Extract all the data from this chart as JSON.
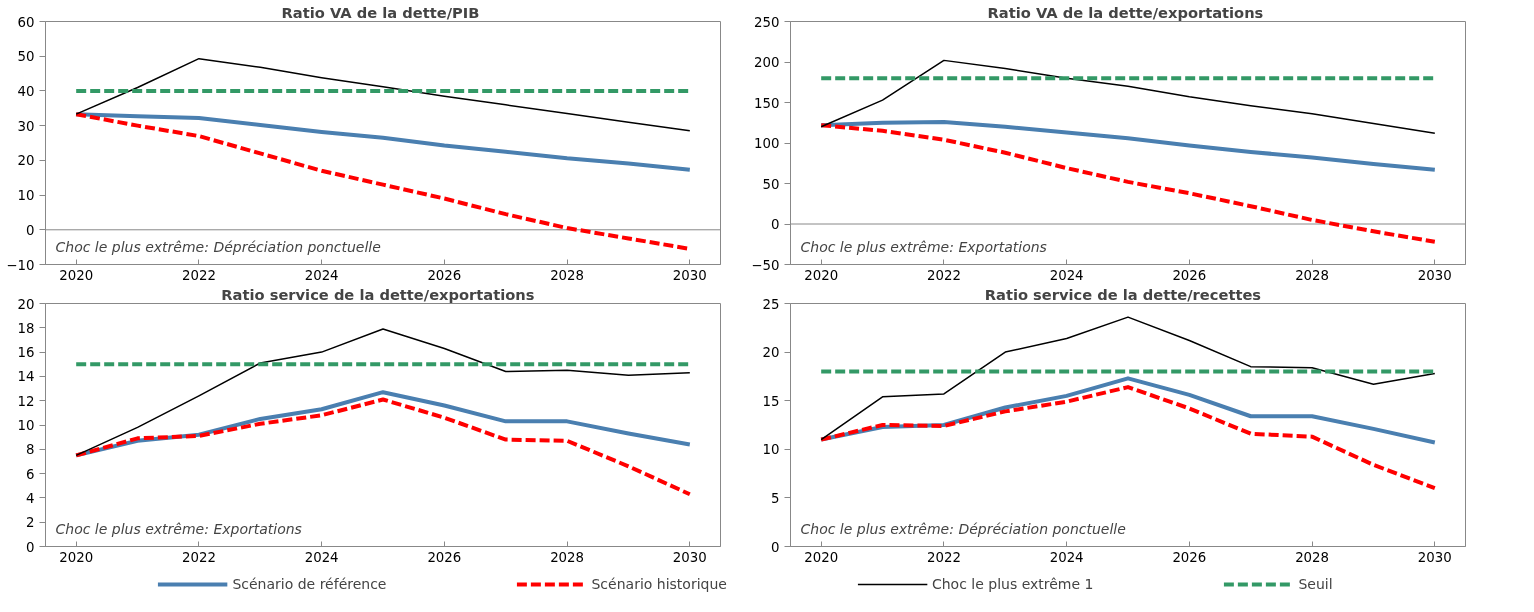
{
  "chart_data": [
    {
      "type": "line",
      "title": "Ratio  VA de la dette/PIB",
      "x": [
        2020,
        2021,
        2022,
        2023,
        2024,
        2025,
        2026,
        2027,
        2028,
        2029,
        2030
      ],
      "xlim": [
        2019.5,
        2030.5
      ],
      "xticks": [
        2020,
        2022,
        2024,
        2026,
        2028,
        2030
      ],
      "ylim": [
        -10,
        60
      ],
      "yticks": [
        -10,
        0,
        10,
        20,
        30,
        40,
        50,
        60
      ],
      "grid": false,
      "ref_lines": [
        {
          "axis": "y",
          "value": 0,
          "color": "#888888"
        }
      ],
      "legend": "bottom",
      "annotations": [
        "Choc  le plus  extrême:  Dépréciation  ponctuelle"
      ],
      "series": [
        {
          "name": "Scénario de référence",
          "color": "#4a7fb0",
          "line_style": "solid",
          "values": [
            33.3,
            32.7,
            32.2,
            30.2,
            28.2,
            26.5,
            24.3,
            22.5,
            20.6,
            19.1,
            17.3
          ]
        },
        {
          "name": "Scénario historique",
          "color": "#ff0000",
          "line_style": "dashed",
          "values": [
            33.3,
            30,
            27,
            22,
            17,
            13,
            9,
            4.5,
            0.5,
            -2.5,
            -5.5
          ]
        },
        {
          "name": "Choc le plus extrême 1",
          "color": "#000000",
          "line_style": "solid",
          "values": [
            33.3,
            41,
            49.3,
            46.8,
            43.8,
            41.2,
            38.5,
            36,
            33.5,
            31,
            28.5
          ]
        },
        {
          "name": "Seuil",
          "color": "#339966",
          "line_style": "dashed",
          "values": [
            40,
            40,
            40,
            40,
            40,
            40,
            40,
            40,
            40,
            40,
            40
          ]
        }
      ]
    },
    {
      "type": "line",
      "title": "Ratio  VA de la dette/exportations",
      "x": [
        2020,
        2021,
        2022,
        2023,
        2024,
        2025,
        2026,
        2027,
        2028,
        2029,
        2030
      ],
      "xlim": [
        2019.5,
        2030.5
      ],
      "xticks": [
        2020,
        2022,
        2024,
        2026,
        2028,
        2030
      ],
      "ylim": [
        -50,
        250
      ],
      "yticks": [
        -50,
        0,
        50,
        100,
        150,
        200,
        250
      ],
      "grid": false,
      "ref_lines": [
        {
          "axis": "y",
          "value": 0,
          "color": "#888888"
        }
      ],
      "annotations": [
        "Choc  le plus  extrême:  Exportations"
      ],
      "series": [
        {
          "color": "#4a7fb0",
          "line_style": "solid",
          "values": [
            122,
            125,
            126,
            120,
            113,
            106,
            97,
            89,
            82,
            74,
            67
          ]
        },
        {
          "color": "#ff0000",
          "line_style": "dashed",
          "values": [
            122,
            115,
            104,
            88,
            69,
            52,
            38,
            22,
            5,
            -9,
            -22
          ]
        },
        {
          "color": "#000000",
          "line_style": "solid",
          "values": [
            120,
            153,
            202,
            192,
            180,
            170,
            157,
            146,
            136,
            124,
            112
          ]
        },
        {
          "color": "#339966",
          "line_style": "dashed",
          "values": [
            180,
            180,
            180,
            180,
            180,
            180,
            180,
            180,
            180,
            180,
            180
          ]
        }
      ]
    },
    {
      "type": "line",
      "title": "Ratio  service de  la dette/exportations",
      "x": [
        2020,
        2021,
        2022,
        2023,
        2024,
        2025,
        2026,
        2027,
        2028,
        2029,
        2030
      ],
      "xlim": [
        2019.5,
        2030.5
      ],
      "xticks": [
        2020,
        2022,
        2024,
        2026,
        2028,
        2030
      ],
      "ylim": [
        0,
        20
      ],
      "yticks": [
        0,
        2,
        4,
        6,
        8,
        10,
        12,
        14,
        16,
        18,
        20
      ],
      "grid": false,
      "annotations": [
        "Choc  le plus  extrême:  Exportations"
      ],
      "series": [
        {
          "color": "#4a7fb0",
          "line_style": "solid",
          "values": [
            7.5,
            8.7,
            9.2,
            10.5,
            11.3,
            12.7,
            11.6,
            10.3,
            10.3,
            9.3,
            8.4
          ]
        },
        {
          "color": "#ff0000",
          "line_style": "dashed",
          "values": [
            7.5,
            8.9,
            9.1,
            10.1,
            10.8,
            12.1,
            10.6,
            8.8,
            8.7,
            6.6,
            4.3
          ]
        },
        {
          "color": "#000000",
          "line_style": "solid",
          "values": [
            7.5,
            9.8,
            12.4,
            15.1,
            16,
            17.9,
            16.3,
            14.4,
            14.5,
            14.1,
            14.3
          ]
        },
        {
          "color": "#339966",
          "line_style": "dashed",
          "values": [
            15,
            15,
            15,
            15,
            15,
            15,
            15,
            15,
            15,
            15,
            15
          ]
        }
      ]
    },
    {
      "type": "line",
      "title": "Ratio  service de  la dette/recettes",
      "x": [
        2020,
        2021,
        2022,
        2023,
        2024,
        2025,
        2026,
        2027,
        2028,
        2029,
        2030
      ],
      "xlim": [
        2019.5,
        2030.5
      ],
      "xticks": [
        2020,
        2022,
        2024,
        2026,
        2028,
        2030
      ],
      "ylim": [
        0,
        25
      ],
      "yticks": [
        0,
        5,
        10,
        15,
        20,
        25
      ],
      "grid": false,
      "annotations": [
        "Choc  le plus  extrême:  Dépréciation  ponctuelle"
      ],
      "series": [
        {
          "color": "#4a7fb0",
          "line_style": "solid",
          "values": [
            11,
            12.3,
            12.5,
            14.3,
            15.5,
            17.3,
            15.6,
            13.4,
            13.4,
            12.1,
            10.7
          ]
        },
        {
          "color": "#ff0000",
          "line_style": "dashed",
          "values": [
            11,
            12.5,
            12.4,
            13.9,
            14.9,
            16.4,
            14.2,
            11.6,
            11.3,
            8.4,
            6
          ]
        },
        {
          "color": "#000000",
          "line_style": "solid",
          "values": [
            11,
            15.4,
            15.7,
            20,
            21.4,
            23.6,
            21.2,
            18.5,
            18.4,
            16.7,
            17.8
          ]
        },
        {
          "color": "#339966",
          "line_style": "dashed",
          "values": [
            18,
            18,
            18,
            18,
            18,
            18,
            18,
            18,
            18,
            18,
            18
          ]
        }
      ]
    }
  ]
}
